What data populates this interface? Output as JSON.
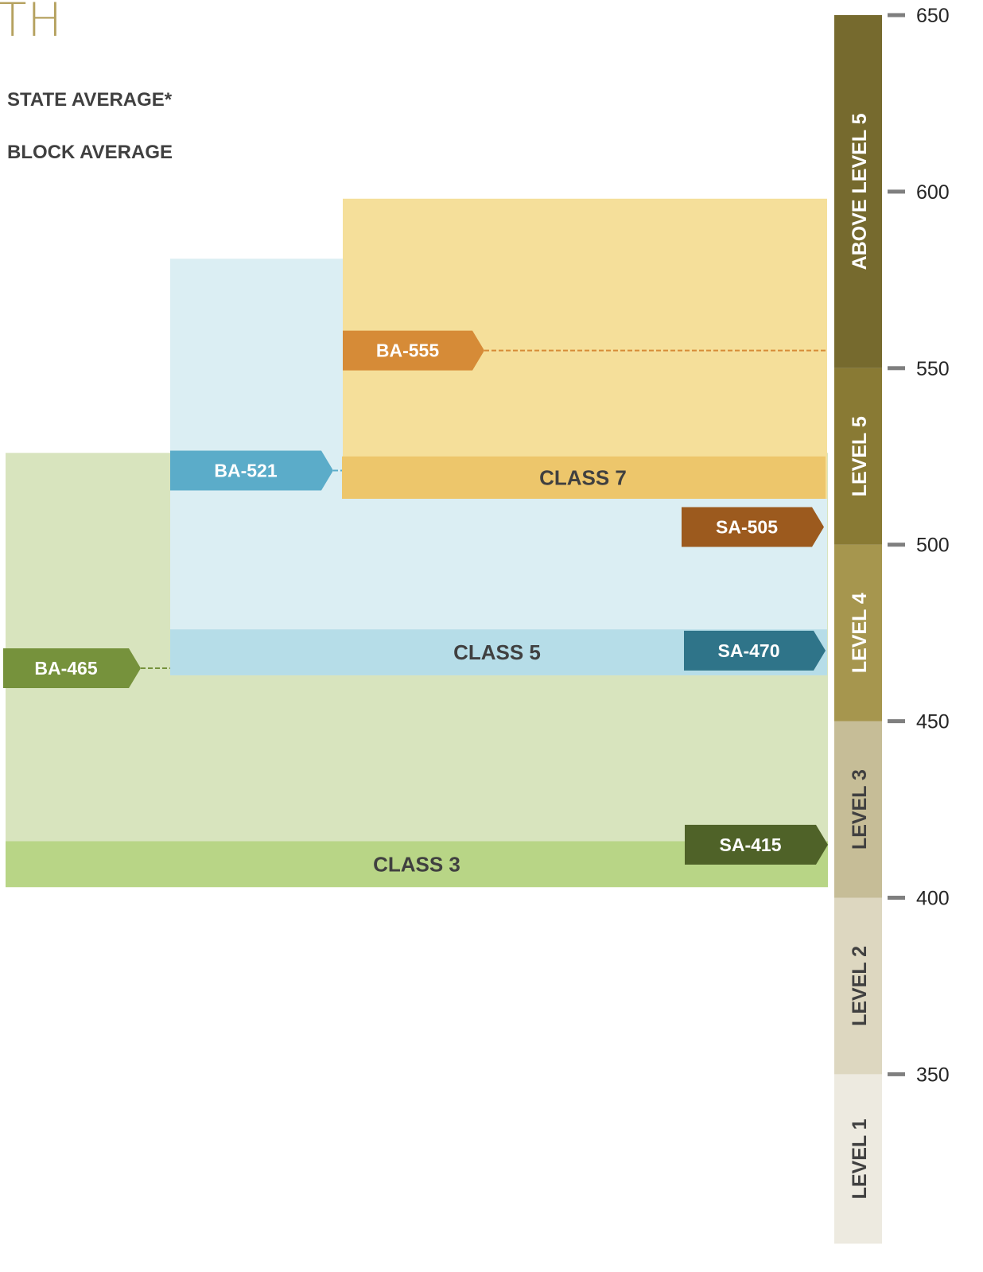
{
  "title": "TH",
  "legend": {
    "state_average": "STATE AVERAGE*",
    "block_average": "BLOCK AVERAGE"
  },
  "chart_data": {
    "type": "range_bar",
    "ylim": [
      302,
      650
    ],
    "axis_ticks": [
      650,
      600,
      550,
      500,
      450,
      400,
      350
    ],
    "levels": [
      {
        "label": "LEVEL 1",
        "from": 302,
        "to": 350,
        "color": "#EDEAE0",
        "text_color": "#404040"
      },
      {
        "label": "LEVEL 2",
        "from": 350,
        "to": 400,
        "color": "#DDD7C0",
        "text_color": "#404040"
      },
      {
        "label": "LEVEL 3",
        "from": 400,
        "to": 450,
        "color": "#C6BD97",
        "text_color": "#404040"
      },
      {
        "label": "LEVEL 4",
        "from": 450,
        "to": 500,
        "color": "#A6964E",
        "text_color": "#ffffff"
      },
      {
        "label": "LEVEL 5",
        "from": 500,
        "to": 550,
        "color": "#897A34",
        "text_color": "#ffffff"
      },
      {
        "label": "ABOVE LEVEL 5",
        "from": 550,
        "to": 650,
        "color": "#766A2E",
        "text_color": "#ffffff"
      }
    ],
    "classes": [
      {
        "name": "CLASS 3",
        "range_top": 526,
        "band": [
          403,
          416
        ],
        "color": "#D8E4BE",
        "band_color": "#B8D586",
        "block_average": "BA-465",
        "ba_value": 465,
        "ba_color": "#76923C",
        "state_average": "SA-415",
        "sa_value": 415,
        "sa_color": "#4F6228"
      },
      {
        "name": "CLASS 5",
        "range_top": 581,
        "band": [
          463,
          476
        ],
        "color": "#DBEEF3",
        "band_color": "#B6DDE8",
        "block_average": "BA-521",
        "ba_value": 521,
        "ba_color": "#5BACC9",
        "state_average": "SA-470",
        "sa_value": 470,
        "sa_color": "#2F7489"
      },
      {
        "name": "CLASS 7",
        "range_top": 598,
        "band": [
          513,
          525
        ],
        "color": "#F5DF9A",
        "band_color": "#EDC66B",
        "block_average": "BA-555",
        "ba_value": 555,
        "ba_color": "#D68B37",
        "state_average": "SA-505",
        "sa_value": 505,
        "sa_color": "#9C5A1E"
      }
    ]
  }
}
